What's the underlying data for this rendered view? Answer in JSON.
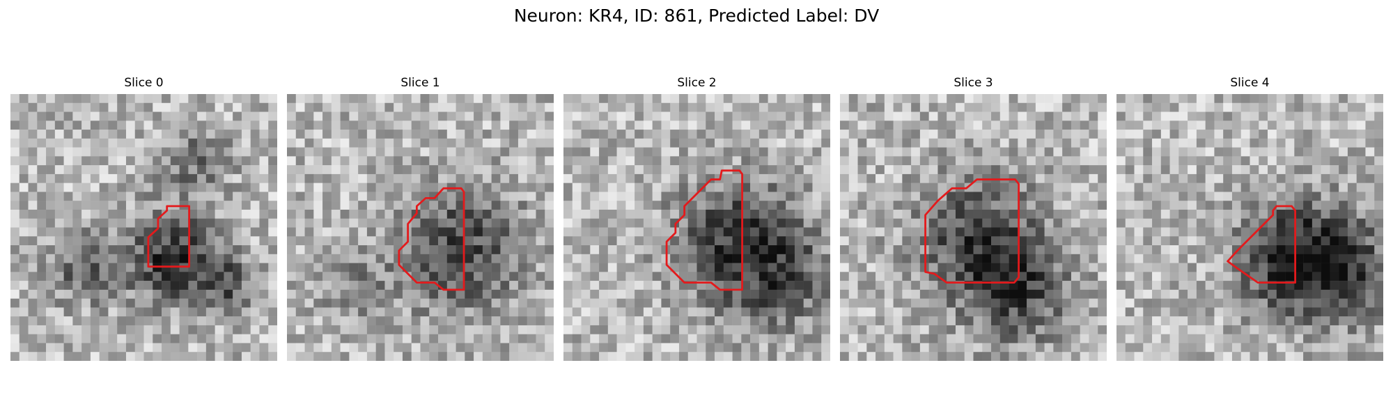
{
  "figure": {
    "title": "Neuron: KR4, ID: 861, Predicted Label: DV"
  },
  "panels": [
    {
      "title": "Slice 0",
      "roi_color": "#e31a1c",
      "roi": [
        [
          17.6,
          12.6
        ],
        [
          20.1,
          12.6
        ],
        [
          20.1,
          19.4
        ],
        [
          15.5,
          19.4
        ],
        [
          15.5,
          16.1
        ],
        [
          16.6,
          15.1
        ],
        [
          16.6,
          14.0
        ],
        [
          17.6,
          13.1
        ]
      ]
    },
    {
      "title": "Slice 1",
      "roi_color": "#e31a1c",
      "roi": [
        [
          17.6,
          10.6
        ],
        [
          19.6,
          10.6
        ],
        [
          19.9,
          11.0
        ],
        [
          19.9,
          22.0
        ],
        [
          17.6,
          22.0
        ],
        [
          16.6,
          21.2
        ],
        [
          14.6,
          21.2
        ],
        [
          13.6,
          20.2
        ],
        [
          12.6,
          19.2
        ],
        [
          12.6,
          17.6
        ],
        [
          13.6,
          16.6
        ],
        [
          13.6,
          14.6
        ],
        [
          14.6,
          13.4
        ],
        [
          14.6,
          12.6
        ],
        [
          15.6,
          11.7
        ],
        [
          16.6,
          11.7
        ]
      ]
    },
    {
      "title": "Slice 2",
      "roi_color": "#e31a1c",
      "roi": [
        [
          17.8,
          8.6
        ],
        [
          19.8,
          8.6
        ],
        [
          20.1,
          9.0
        ],
        [
          20.1,
          22.0
        ],
        [
          17.6,
          22.0
        ],
        [
          16.6,
          21.2
        ],
        [
          13.6,
          21.2
        ],
        [
          12.6,
          20.2
        ],
        [
          11.6,
          19.2
        ],
        [
          11.6,
          16.6
        ],
        [
          12.6,
          15.6
        ],
        [
          12.6,
          14.6
        ],
        [
          13.6,
          13.6
        ],
        [
          13.6,
          12.6
        ],
        [
          14.6,
          11.6
        ],
        [
          15.6,
          10.6
        ],
        [
          16.6,
          9.6
        ],
        [
          17.6,
          9.6
        ]
      ]
    },
    {
      "title": "Slice 3",
      "roi_color": "#e31a1c",
      "roi": [
        [
          15.4,
          9.6
        ],
        [
          19.7,
          9.6
        ],
        [
          20.1,
          10.1
        ],
        [
          20.1,
          20.6
        ],
        [
          19.6,
          21.2
        ],
        [
          12.0,
          21.2
        ],
        [
          10.6,
          20.2
        ],
        [
          9.6,
          20.0
        ],
        [
          9.6,
          13.6
        ],
        [
          11.0,
          12.0
        ],
        [
          12.6,
          10.6
        ],
        [
          14.2,
          10.6
        ]
      ]
    },
    {
      "title": "Slice 4",
      "roi_color": "#e31a1c",
      "roi": [
        [
          18.0,
          12.6
        ],
        [
          19.7,
          12.6
        ],
        [
          20.1,
          13.1
        ],
        [
          20.1,
          21.2
        ],
        [
          15.9,
          21.2
        ],
        [
          13.6,
          19.6
        ],
        [
          12.5,
          18.8
        ],
        [
          13.6,
          17.6
        ],
        [
          14.6,
          16.6
        ],
        [
          15.6,
          15.6
        ],
        [
          16.6,
          14.6
        ],
        [
          17.6,
          13.6
        ],
        [
          17.6,
          13.1
        ]
      ]
    }
  ]
}
